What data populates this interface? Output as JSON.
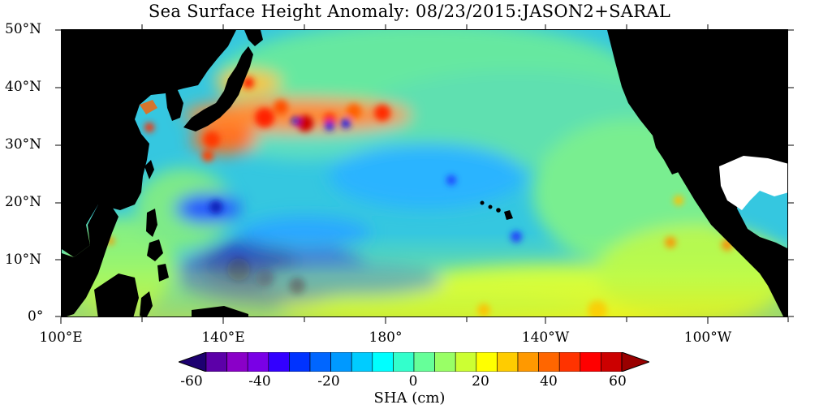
{
  "title": "Sea Surface Height Anomaly: 08/23/2015:JASON2+SARAL",
  "lat_labels": [
    "50°N",
    "40°N",
    "30°N",
    "20°N",
    "10°N",
    "0°"
  ],
  "lon_labels": [
    "100°E",
    "140°E",
    "180°",
    "140°W",
    "100°W"
  ],
  "colorbar": {
    "title": "SHA (cm)",
    "ticks": [
      "-60",
      "-40",
      "-20",
      "0",
      "20",
      "40",
      "60"
    ],
    "min": -60,
    "max": 60,
    "colors": [
      "#1d0070",
      "#5c00a8",
      "#8a00c8",
      "#7a00e6",
      "#3300ff",
      "#0033ff",
      "#0066ff",
      "#0099ff",
      "#00ccff",
      "#00ffff",
      "#33ffcc",
      "#66ff99",
      "#99ff66",
      "#ccff33",
      "#ffff00",
      "#ffcc00",
      "#ff9900",
      "#ff6600",
      "#ff3300",
      "#ff0000",
      "#cc0000",
      "#990000"
    ]
  },
  "map": {
    "extent": {
      "lon_min": 100,
      "lon_max": 280,
      "lat_min": 0,
      "lat_max": 50
    },
    "land_color": "#000000",
    "background_color": "#35c7e0"
  }
}
